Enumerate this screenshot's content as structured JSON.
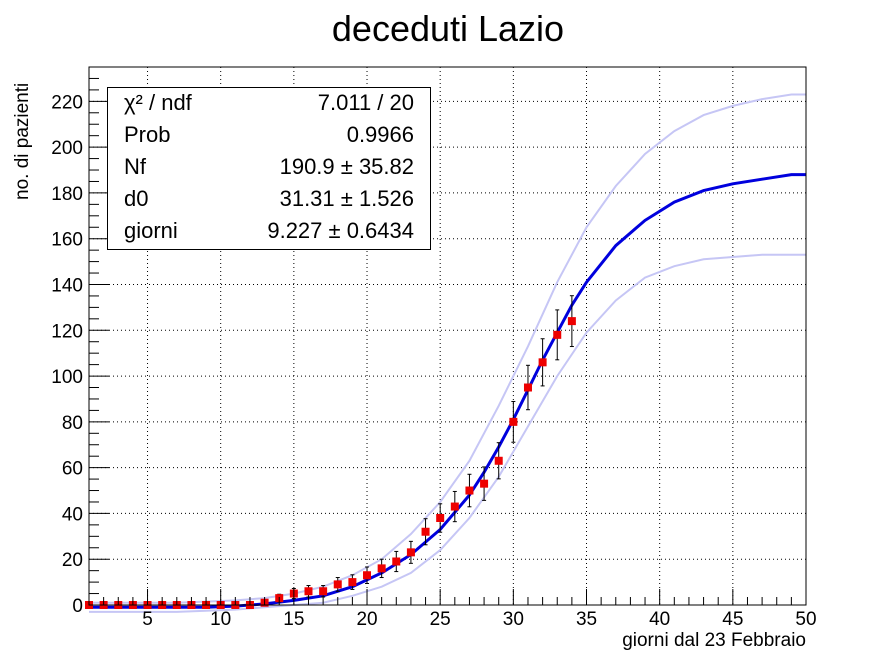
{
  "title": "deceduti Lazio",
  "xlabel": "giorni dal 23 Febbraio",
  "ylabel": "no. di pazienti",
  "stats": [
    {
      "key": "χ² / ndf",
      "value": "7.011 / 20"
    },
    {
      "key": "Prob",
      "value": "0.9966"
    },
    {
      "key": "Nf",
      "value": "190.9 ± 35.82"
    },
    {
      "key": "d0",
      "value": "31.31 ± 1.526"
    },
    {
      "key": "giorni",
      "value": "9.227 ± 0.6434"
    }
  ],
  "colors": {
    "fit": "#0000dd",
    "band": "#c6c6f5",
    "points": "#ee0000",
    "errors": "#000000"
  },
  "chart_data": {
    "type": "scatter",
    "title": "deceduti Lazio",
    "xlabel": "giorni dal 23 Febbraio",
    "ylabel": "no. di pazienti",
    "xlim": [
      1,
      50
    ],
    "ylim": [
      0,
      235
    ],
    "xticks": [
      5,
      10,
      15,
      20,
      25,
      30,
      35,
      40,
      45,
      50
    ],
    "yticks": [
      0,
      20,
      40,
      60,
      80,
      100,
      120,
      140,
      160,
      180,
      200,
      220
    ],
    "grid": true,
    "series": [
      {
        "kind": "points",
        "x": [
          1,
          2,
          3,
          4,
          5,
          6,
          7,
          8,
          9,
          10,
          11,
          12,
          13,
          14,
          15,
          16,
          17,
          18,
          19,
          20,
          21,
          22,
          23,
          24,
          25,
          26,
          27,
          28,
          29,
          30,
          31,
          32,
          33,
          34
        ],
        "y": [
          0,
          0,
          0,
          0,
          0,
          0,
          0,
          0,
          0,
          0,
          0,
          0,
          1,
          3,
          5,
          6,
          6,
          9,
          10,
          13,
          16,
          19,
          23,
          32,
          38,
          43,
          50,
          53,
          63,
          80,
          95,
          106,
          118,
          124
        ],
        "err": [
          1,
          1,
          1,
          1,
          1,
          1,
          1,
          1,
          1,
          1,
          1,
          1,
          1,
          1.7,
          2.2,
          2.5,
          2.5,
          3,
          3.2,
          3.6,
          4,
          4.4,
          4.8,
          5.7,
          6.2,
          6.6,
          7.1,
          7.3,
          7.9,
          8.9,
          9.7,
          10.3,
          10.9,
          11.1
        ]
      },
      {
        "kind": "curve",
        "x": [
          1,
          3,
          5,
          7,
          9,
          11,
          13,
          15,
          17,
          19,
          21,
          23,
          25,
          27,
          28,
          29,
          30,
          31,
          32,
          33,
          34,
          35,
          37,
          39,
          41,
          43,
          45,
          47,
          49,
          50
        ],
        "y": [
          -1,
          -1,
          -1,
          -1,
          -1,
          -0.5,
          0.5,
          2,
          4,
          8,
          14,
          22,
          33,
          48,
          58,
          69,
          81,
          94,
          107,
          119,
          131,
          141,
          157,
          168,
          176,
          181,
          184,
          186,
          188,
          188
        ]
      },
      {
        "kind": "band-upper",
        "x": [
          1,
          3,
          5,
          7,
          9,
          11,
          13,
          15,
          17,
          19,
          21,
          23,
          25,
          27,
          29,
          31,
          33,
          35,
          37,
          39,
          41,
          43,
          45,
          47,
          49,
          50
        ],
        "y": [
          1,
          1,
          1,
          1,
          1.5,
          2,
          3,
          5,
          8,
          13,
          20,
          31,
          45,
          63,
          87,
          113,
          141,
          165,
          183,
          197,
          207,
          214,
          218,
          221,
          223,
          223
        ]
      },
      {
        "kind": "band-lower",
        "x": [
          1,
          3,
          5,
          7,
          9,
          11,
          13,
          15,
          17,
          19,
          21,
          23,
          25,
          27,
          29,
          31,
          33,
          35,
          37,
          39,
          41,
          43,
          45,
          47,
          49,
          50
        ],
        "y": [
          -3,
          -3,
          -3,
          -3,
          -2.5,
          -2,
          -1,
          0,
          1,
          4,
          8,
          14,
          24,
          38,
          56,
          78,
          100,
          119,
          133,
          143,
          148,
          151,
          152,
          153,
          153,
          153
        ]
      }
    ]
  }
}
